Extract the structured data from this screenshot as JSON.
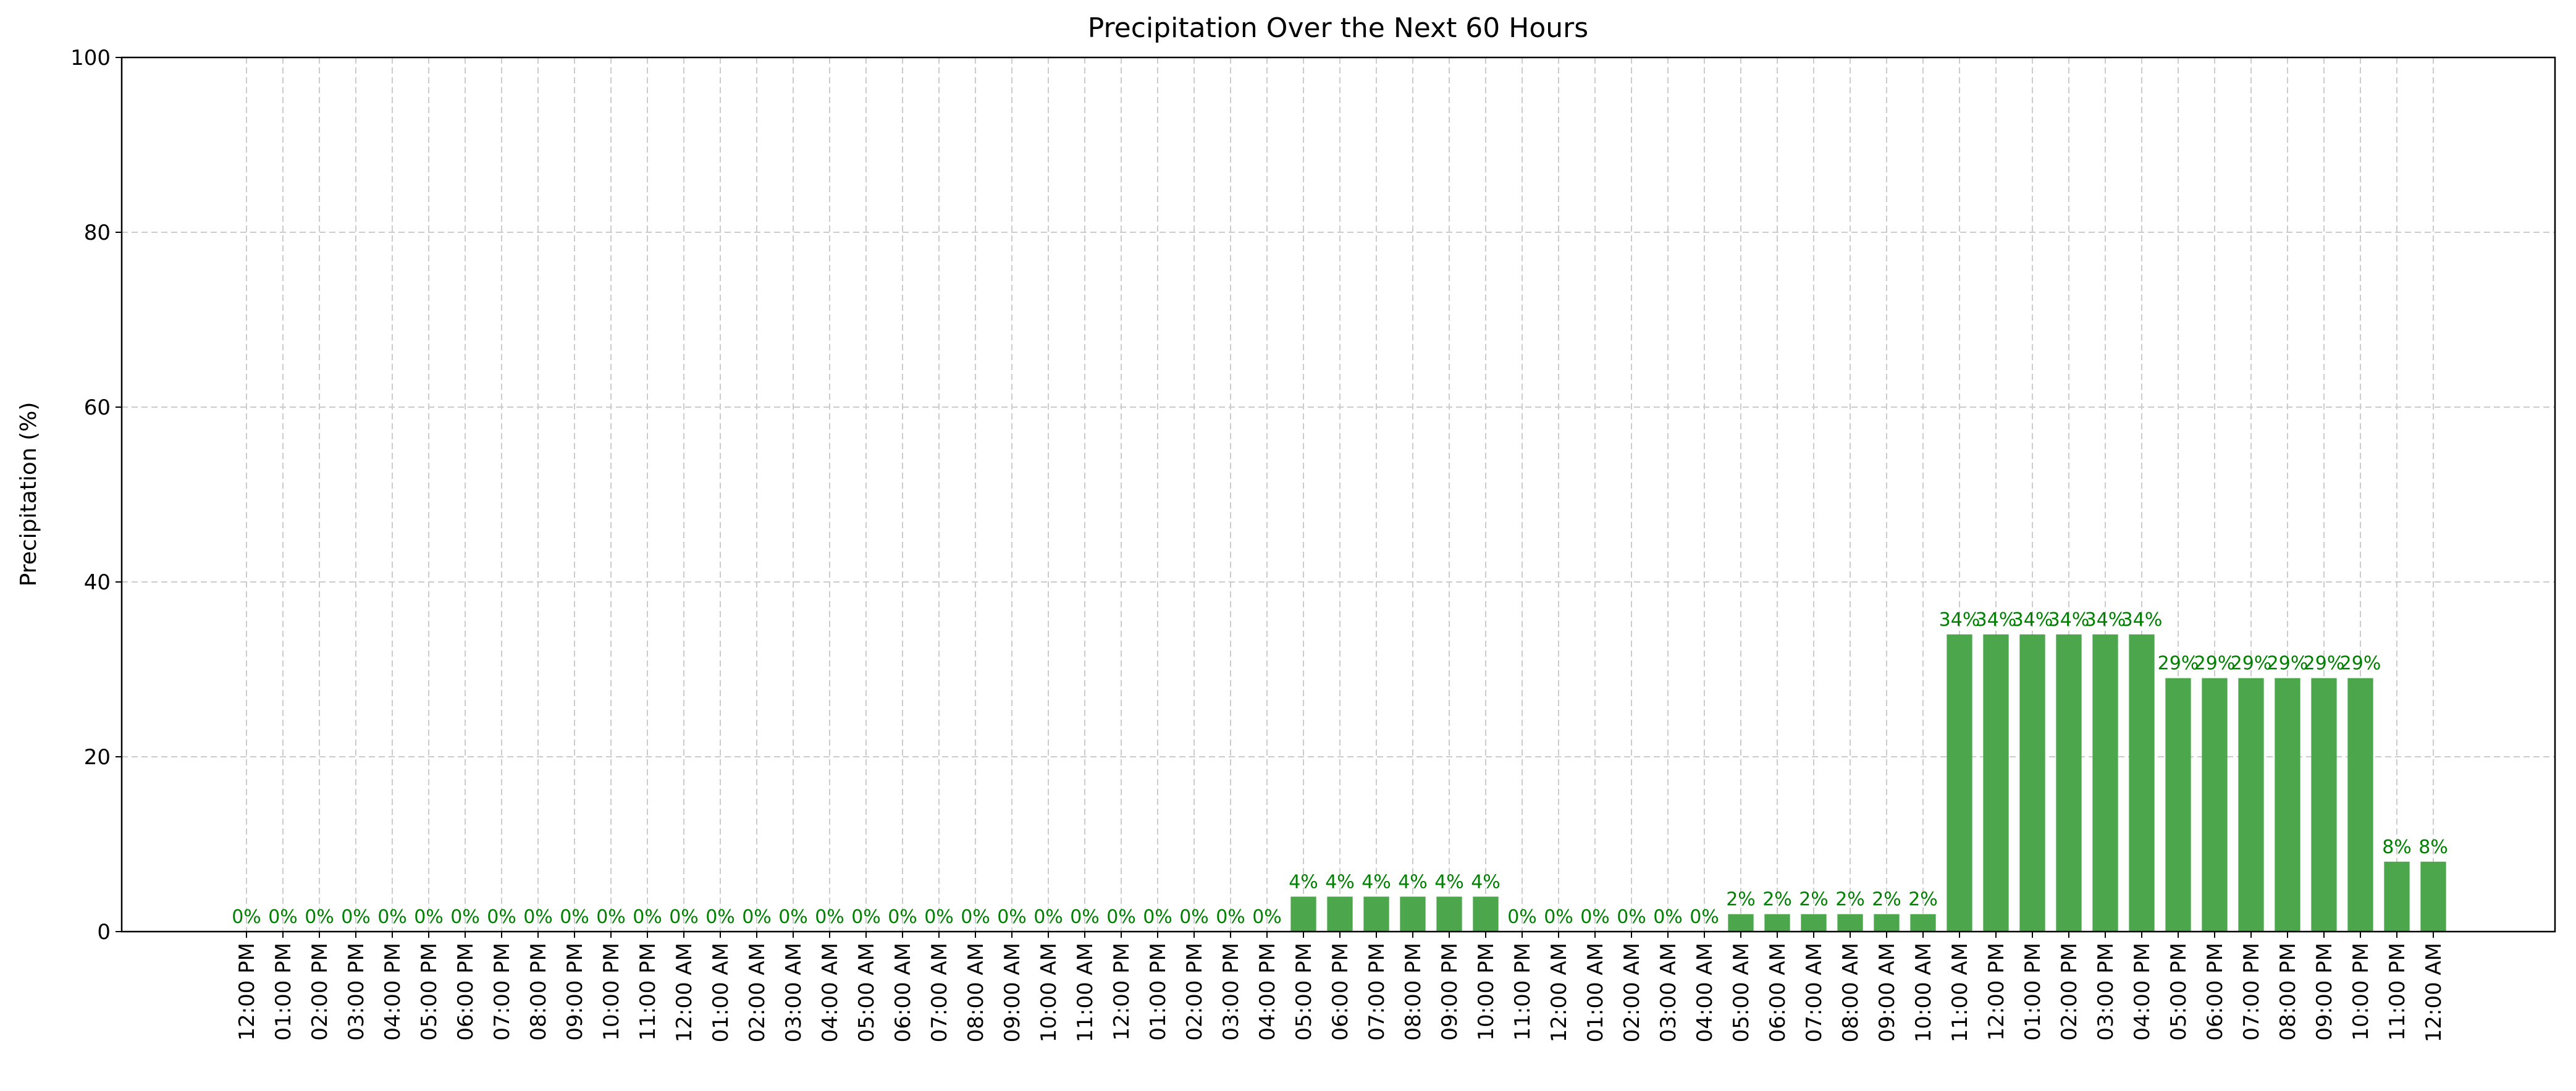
{
  "chart_data": {
    "type": "bar",
    "title": "Precipitation Over the Next 60 Hours",
    "y_label": "Precipitation (%)",
    "categories": [
      "12:00 PM",
      "01:00 PM",
      "02:00 PM",
      "03:00 PM",
      "04:00 PM",
      "05:00 PM",
      "06:00 PM",
      "07:00 PM",
      "08:00 PM",
      "09:00 PM",
      "10:00 PM",
      "11:00 PM",
      "12:00 AM",
      "01:00 AM",
      "02:00 AM",
      "03:00 AM",
      "04:00 AM",
      "05:00 AM",
      "06:00 AM",
      "07:00 AM",
      "08:00 AM",
      "09:00 AM",
      "10:00 AM",
      "11:00 AM",
      "12:00 PM",
      "01:00 PM",
      "02:00 PM",
      "03:00 PM",
      "04:00 PM",
      "05:00 PM",
      "06:00 PM",
      "07:00 PM",
      "08:00 PM",
      "09:00 PM",
      "10:00 PM",
      "11:00 PM",
      "12:00 AM",
      "01:00 AM",
      "02:00 AM",
      "03:00 AM",
      "04:00 AM",
      "05:00 AM",
      "06:00 AM",
      "07:00 AM",
      "08:00 AM",
      "09:00 AM",
      "10:00 AM",
      "11:00 AM",
      "12:00 PM",
      "01:00 PM",
      "02:00 PM",
      "03:00 PM",
      "04:00 PM",
      "05:00 PM",
      "06:00 PM",
      "07:00 PM",
      "08:00 PM",
      "09:00 PM",
      "10:00 PM",
      "11:00 PM",
      "12:00 AM"
    ],
    "values": [
      0,
      0,
      0,
      0,
      0,
      0,
      0,
      0,
      0,
      0,
      0,
      0,
      0,
      0,
      0,
      0,
      0,
      0,
      0,
      0,
      0,
      0,
      0,
      0,
      0,
      0,
      0,
      0,
      0,
      4,
      4,
      4,
      4,
      4,
      4,
      0,
      0,
      0,
      0,
      0,
      0,
      2,
      2,
      2,
      2,
      2,
      2,
      34,
      34,
      34,
      34,
      34,
      34,
      29,
      29,
      29,
      29,
      29,
      29,
      8,
      8
    ],
    "value_labels": [
      "0%",
      "0%",
      "0%",
      "0%",
      "0%",
      "0%",
      "0%",
      "0%",
      "0%",
      "0%",
      "0%",
      "0%",
      "0%",
      "0%",
      "0%",
      "0%",
      "0%",
      "0%",
      "0%",
      "0%",
      "0%",
      "0%",
      "0%",
      "0%",
      "0%",
      "0%",
      "0%",
      "0%",
      "0%",
      "4%",
      "4%",
      "4%",
      "4%",
      "4%",
      "4%",
      "0%",
      "0%",
      "0%",
      "0%",
      "0%",
      "0%",
      "2%",
      "2%",
      "2%",
      "2%",
      "2%",
      "2%",
      "34%",
      "34%",
      "34%",
      "34%",
      "34%",
      "34%",
      "29%",
      "29%",
      "29%",
      "29%",
      "29%",
      "29%",
      "8%",
      "8%"
    ],
    "color": "#4ca64c",
    "label_color": "#008000",
    "ylim": [
      0,
      100
    ],
    "yticks": [
      0,
      20,
      40,
      60,
      80,
      100
    ],
    "grid": true
  }
}
